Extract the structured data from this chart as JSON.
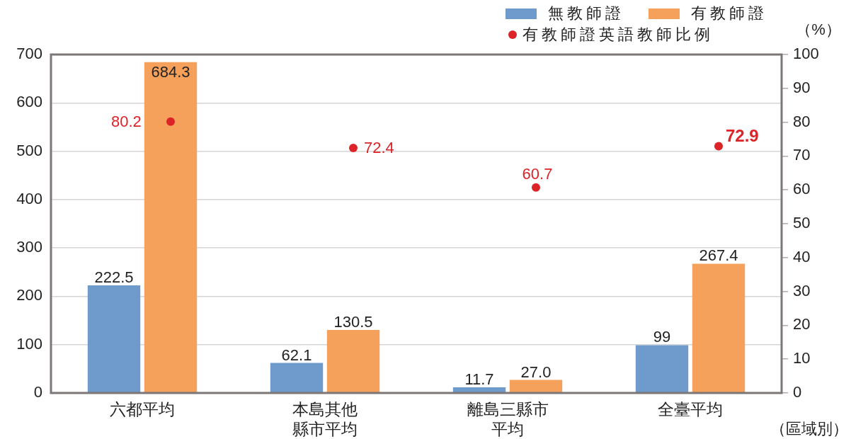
{
  "chart_data": {
    "type": "bar",
    "categories": [
      "六都平均",
      "本島其他縣市平均",
      "離島三縣市平均",
      "全臺平均"
    ],
    "xlabel": "（區域別）",
    "y2label": "（%）",
    "series": [
      {
        "name": "無教師證",
        "color": "#6e9bcb",
        "values": [
          222.5,
          62.1,
          11.7,
          99
        ],
        "value_labels": [
          "222.5",
          "62.1",
          "11.7",
          "99"
        ]
      },
      {
        "name": "有教師證",
        "color": "#f5a05b",
        "values": [
          684.3,
          130.5,
          27.0,
          267.4
        ],
        "value_labels": [
          "684.3",
          "130.5",
          "27.0",
          "267.4"
        ]
      },
      {
        "name": "有教師證英語教師比例",
        "type": "scatter",
        "axis": "y2",
        "color": "#dc2328",
        "values": [
          80.2,
          72.4,
          60.7,
          72.9
        ],
        "value_labels": [
          "80.2",
          "72.4",
          "60.7",
          "72.9"
        ]
      }
    ],
    "ylim": [
      0,
      700
    ],
    "yticks": [
      0,
      100,
      200,
      300,
      400,
      500,
      600,
      700
    ],
    "y2lim": [
      0,
      100
    ],
    "y2ticks": [
      0,
      10,
      20,
      30,
      40,
      50,
      60,
      70,
      80,
      90,
      100
    ],
    "grid": "y",
    "legend": "top right",
    "marker": "circle"
  }
}
